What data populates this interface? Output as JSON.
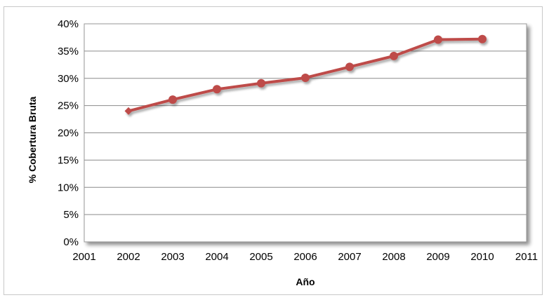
{
  "chart_data": {
    "type": "line",
    "title": "",
    "xlabel": "Año",
    "ylabel": "% Cobertura Bruta",
    "x": [
      2002,
      2003,
      2004,
      2005,
      2006,
      2007,
      2008,
      2009,
      2010
    ],
    "series": [
      {
        "values": [
          24.0,
          26.1,
          28.0,
          29.1,
          30.1,
          32.1,
          34.1,
          37.1,
          37.2
        ],
        "color": "#be4b48",
        "first_marker": "diamond",
        "marker": "circle"
      }
    ],
    "xlim": [
      2001,
      2011
    ],
    "ylim": [
      0,
      40
    ],
    "x_ticks": [
      "2001",
      "2002",
      "2003",
      "2004",
      "2005",
      "2006",
      "2007",
      "2008",
      "2009",
      "2010",
      "2011"
    ],
    "y_ticks": [
      "0%",
      "5%",
      "10%",
      "15%",
      "20%",
      "25%",
      "30%",
      "35%",
      "40%"
    ],
    "grid": "horizontal",
    "legend": "none",
    "plot_background": "#ffffff",
    "gridline_color": "#8c8c8c"
  }
}
